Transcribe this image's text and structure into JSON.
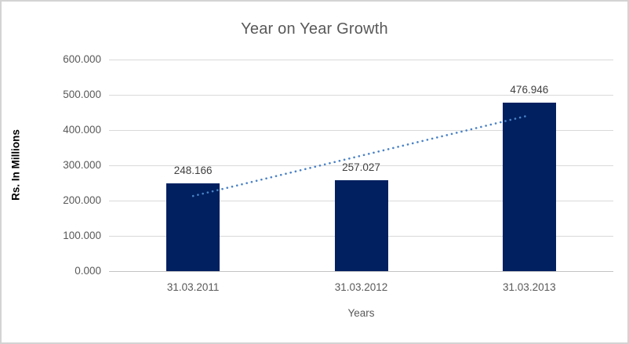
{
  "chart_data": {
    "type": "bar",
    "title": "Year on Year Growth",
    "xlabel": "Years",
    "ylabel": "Rs. In Millions",
    "categories": [
      "31.03.2011",
      "31.03.2012",
      "31.03.2013"
    ],
    "values": [
      248.166,
      257.027,
      476.946
    ],
    "data_labels": [
      "248.166",
      "257.027",
      "476.946"
    ],
    "ylim": [
      0,
      600
    ],
    "ytick_step": 100,
    "ytick_labels": [
      "0.000",
      "100.000",
      "200.000",
      "300.000",
      "400.000",
      "500.000",
      "600.000"
    ],
    "grid": true,
    "legend": "none",
    "trendline": {
      "type": "linear",
      "style": "dotted",
      "color": "#4a82c6"
    },
    "colors": {
      "bar": "#002060",
      "gridline": "#d9d9d9",
      "axis_line": "#c3c3c3",
      "title_text": "#595959",
      "tick_text": "#595959",
      "data_label_text": "#404040",
      "x_axis_title_text": "#595959",
      "y_axis_title_text": "#000000",
      "frame_border": "#d3d3d3",
      "background": "#ffffff"
    }
  }
}
